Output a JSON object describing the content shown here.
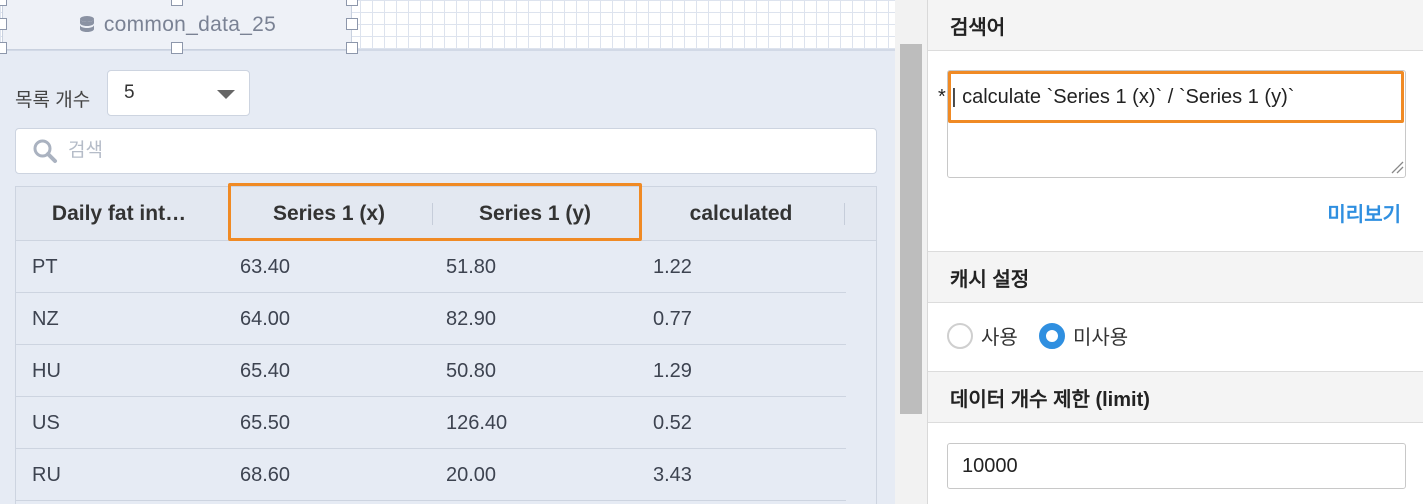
{
  "widget": {
    "title": "common_data_25",
    "icon": "database-icon"
  },
  "list_count": {
    "label": "목록 개수",
    "value": "5"
  },
  "search": {
    "placeholder": "검색"
  },
  "table": {
    "columns": [
      "Daily fat int…",
      "Series 1 (x)",
      "Series 1 (y)",
      "calculated"
    ],
    "rows": [
      [
        "PT",
        "63.40",
        "51.80",
        "1.22"
      ],
      [
        "NZ",
        "64.00",
        "82.90",
        "0.77"
      ],
      [
        "HU",
        "65.40",
        "50.80",
        "1.29"
      ],
      [
        "US",
        "65.50",
        "126.40",
        "0.52"
      ],
      [
        "RU",
        "68.60",
        "20.00",
        "3.43"
      ]
    ]
  },
  "panel": {
    "query_title": "검색어",
    "query_text": "* | calculate `Series 1 (x)` / `Series 1 (y)`",
    "preview_label": "미리보기",
    "cache_title": "캐시 설정",
    "cache_options": [
      "사용",
      "미사용"
    ],
    "cache_selected": "미사용",
    "limit_title": "데이터 개수 제한 (limit)",
    "limit_value": "10000"
  },
  "colors": {
    "highlight": "#f08a24",
    "accent": "#2f8fe0"
  }
}
